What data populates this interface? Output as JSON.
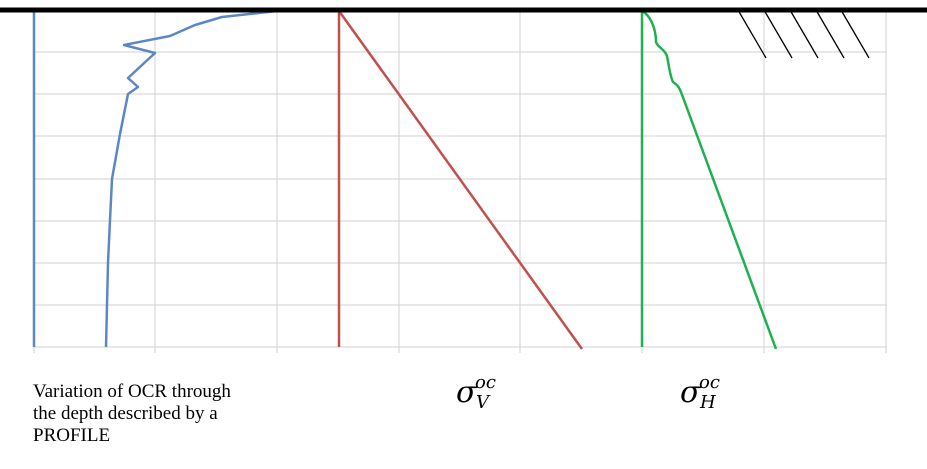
{
  "caption": "Variation of OCR through\nthe depth described by a\nPROFILE",
  "labels": {
    "sigma_v": {
      "base": "σ",
      "sup": "oc",
      "sub": "V"
    },
    "sigma_h": {
      "base": "σ",
      "sup": "oc",
      "sub": "H"
    }
  },
  "colors": {
    "ocr_profile": "#5b87c5",
    "sigma_v_line": "#c0504d",
    "sigma_h_line": "#1fb050",
    "ground_surface": "#000000",
    "grid": "#d2d2d2"
  },
  "icons": {
    "ground_hatch": "soil-hatching-icon"
  }
}
